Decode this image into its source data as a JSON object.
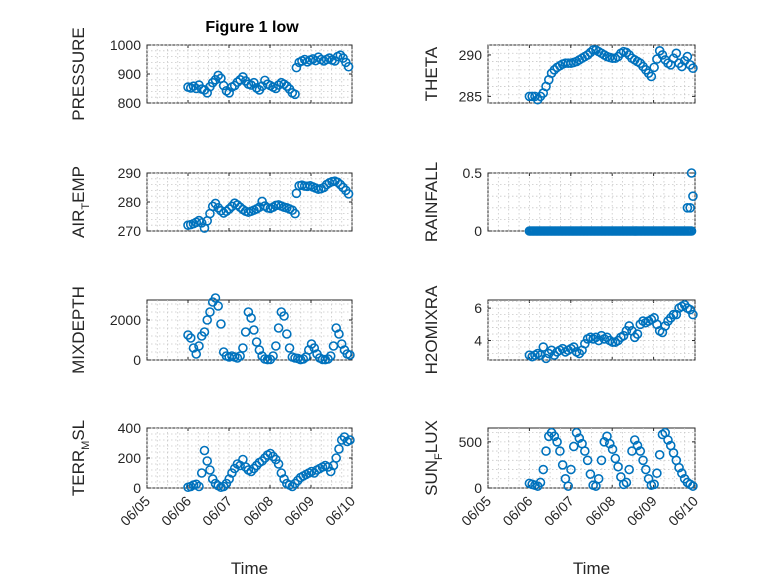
{
  "figure": {
    "title": "Figure 1 low",
    "marker_color": "#0072BD"
  },
  "chart_data": [
    {
      "type": "scatter",
      "ylabel": "PRESSURE",
      "ylabel_sub": "",
      "ylabel_rest": "",
      "ylim": [
        800,
        1000
      ],
      "yticks": [
        800,
        900,
        1000
      ],
      "xticks": [],
      "xlabel": "",
      "title": "Figure 1 low",
      "grid": true,
      "x": [
        6.85,
        6.95,
        7.05,
        7.15,
        7.25,
        7.35,
        7.45,
        7.55,
        7.65,
        7.75,
        7.85,
        7.95,
        8.05,
        8.15,
        8.25,
        8.35,
        8.45,
        8.55,
        8.65,
        8.75,
        8.85,
        8.95,
        9.05,
        9.15,
        9.25,
        9.35,
        9.45,
        9.55,
        9.65,
        9.75,
        9.85,
        9.95,
        10.05,
        10.15,
        10.25,
        10.35,
        10.45,
        10.55,
        10.65,
        10.75,
        10.8,
        10.9,
        11.0,
        11.1,
        11.2,
        11.3,
        11.4,
        11.5,
        11.6,
        11.7,
        11.8,
        11.9,
        12.0,
        12.1,
        12.2,
        12.3,
        12.4,
        12.5,
        12.6,
        12.7
      ],
      "y": [
        855,
        852,
        858,
        850,
        862,
        848,
        845,
        835,
        856,
        870,
        880,
        895,
        885,
        860,
        842,
        835,
        855,
        860,
        872,
        880,
        890,
        876,
        865,
        862,
        870,
        852,
        845,
        858,
        878,
        865,
        860,
        855,
        850,
        862,
        870,
        865,
        858,
        848,
        835,
        830,
        922,
        940,
        945,
        950,
        942,
        948,
        952,
        946,
        958,
        950,
        945,
        950,
        955,
        948,
        945,
        960,
        965,
        955,
        940,
        925
      ]
    },
    {
      "type": "scatter",
      "ylabel": "THETA",
      "ylabel_sub": "",
      "ylabel_rest": "",
      "ylim": [
        284.2,
        291.2
      ],
      "yticks": [
        285,
        290
      ],
      "xticks": [],
      "xlabel": "",
      "grid": true,
      "x": [
        6.85,
        6.95,
        7.05,
        7.15,
        7.25,
        7.35,
        7.45,
        7.55,
        7.65,
        7.75,
        7.85,
        7.95,
        8.05,
        8.15,
        8.25,
        8.35,
        8.45,
        8.55,
        8.65,
        8.75,
        8.85,
        8.95,
        9.05,
        9.15,
        9.25,
        9.35,
        9.45,
        9.55,
        9.65,
        9.75,
        9.85,
        9.95,
        10.05,
        10.15,
        10.25,
        10.35,
        10.45,
        10.55,
        10.65,
        10.75,
        10.85,
        10.95,
        11.05,
        11.15,
        11.25,
        11.35,
        11.45,
        11.55,
        11.65,
        11.75,
        11.85,
        11.95,
        12.05,
        12.15,
        12.25,
        12.35,
        12.45,
        12.55,
        12.65,
        12.75
      ],
      "y": [
        285.0,
        285.0,
        285.0,
        284.6,
        285.0,
        285.4,
        286.2,
        287.0,
        287.8,
        288.2,
        288.5,
        288.7,
        288.9,
        289.0,
        289.0,
        289.0,
        289.1,
        289.2,
        289.4,
        289.6,
        289.8,
        290.0,
        290.3,
        290.6,
        290.6,
        290.4,
        290.2,
        290.0,
        289.8,
        289.7,
        289.6,
        289.6,
        289.8,
        290.2,
        290.4,
        290.3,
        290.0,
        289.6,
        289.4,
        289.2,
        289.0,
        288.6,
        288.2,
        287.8,
        287.4,
        288.5,
        289.5,
        290.5,
        290.0,
        289.4,
        289.0,
        288.8,
        289.6,
        290.2,
        289.0,
        288.6,
        289.3,
        289.8,
        288.8,
        288.4
      ]
    },
    {
      "type": "scatter",
      "ylabel": "AIR",
      "ylabel_sub": "T",
      "ylabel_rest": "EMP",
      "ylim": [
        270,
        290
      ],
      "yticks": [
        270,
        280,
        290
      ],
      "xticks": [],
      "xlabel": "",
      "grid": true,
      "x": [
        6.85,
        6.95,
        7.05,
        7.15,
        7.25,
        7.35,
        7.45,
        7.55,
        7.65,
        7.75,
        7.85,
        7.95,
        8.05,
        8.15,
        8.25,
        8.35,
        8.45,
        8.55,
        8.65,
        8.75,
        8.85,
        8.95,
        9.05,
        9.15,
        9.25,
        9.35,
        9.45,
        9.55,
        9.65,
        9.75,
        9.85,
        9.95,
        10.05,
        10.15,
        10.25,
        10.35,
        10.45,
        10.55,
        10.65,
        10.75,
        10.8,
        10.9,
        11.0,
        11.1,
        11.2,
        11.3,
        11.4,
        11.5,
        11.6,
        11.7,
        11.8,
        11.9,
        12.0,
        12.1,
        12.2,
        12.3,
        12.4,
        12.5,
        12.6,
        12.7
      ],
      "y": [
        272.0,
        272.2,
        272.5,
        273.0,
        273.6,
        272.8,
        271.0,
        273.5,
        276.0,
        278.5,
        279.5,
        278.0,
        277.0,
        276.2,
        276.8,
        277.6,
        278.5,
        279.6,
        279.0,
        278.2,
        277.4,
        276.8,
        276.5,
        276.8,
        277.2,
        277.6,
        278.2,
        280.2,
        278.6,
        278.0,
        277.8,
        278.2,
        278.8,
        279.0,
        278.6,
        278.2,
        278.0,
        277.6,
        277.2,
        276.0,
        283.0,
        285.6,
        285.8,
        285.5,
        285.4,
        285.6,
        285.2,
        284.8,
        284.4,
        284.6,
        285.0,
        286.0,
        286.6,
        287.0,
        287.2,
        286.8,
        286.0,
        285.0,
        284.0,
        282.8
      ]
    },
    {
      "type": "scatter",
      "ylabel": "RAINFALL",
      "ylabel_sub": "",
      "ylabel_rest": "",
      "ylim": [
        0,
        0.5
      ],
      "yticks": [
        0,
        0.5
      ],
      "xticks": [],
      "xlabel": "",
      "grid": true,
      "x": [
        6.85,
        6.9,
        6.95,
        7.0,
        7.05,
        7.1,
        7.15,
        7.2,
        7.25,
        7.3,
        7.35,
        7.4,
        7.45,
        7.5,
        7.55,
        7.6,
        7.65,
        7.7,
        7.75,
        7.8,
        7.85,
        7.9,
        7.95,
        8.0,
        8.05,
        8.1,
        8.15,
        8.2,
        8.25,
        8.3,
        8.35,
        8.4,
        8.45,
        8.5,
        8.55,
        8.6,
        8.65,
        8.7,
        8.75,
        8.8,
        8.85,
        8.9,
        8.95,
        9.0,
        9.05,
        9.1,
        9.15,
        9.2,
        9.25,
        9.3,
        9.35,
        9.4,
        9.45,
        9.5,
        9.55,
        9.6,
        9.65,
        9.7,
        9.75,
        9.8,
        9.85,
        9.9,
        9.95,
        10.0,
        10.05,
        10.1,
        10.15,
        10.2,
        10.25,
        10.3,
        10.35,
        10.4,
        10.45,
        10.5,
        10.55,
        10.6,
        10.65,
        10.7,
        10.75,
        10.8,
        10.85,
        10.9,
        10.95,
        11.0,
        11.05,
        11.1,
        11.15,
        11.2,
        11.25,
        11.3,
        11.35,
        11.4,
        11.45,
        11.5,
        11.55,
        11.6,
        11.65,
        11.7,
        11.75,
        11.8,
        11.85,
        11.9,
        11.95,
        12.0,
        12.05,
        12.1,
        12.15,
        12.2,
        12.25,
        12.3,
        12.35,
        12.4,
        12.45,
        12.5,
        12.55,
        12.6,
        12.65,
        12.7,
        12.55,
        12.65,
        12.7,
        12.75
      ],
      "y": [
        0,
        0,
        0,
        0,
        0,
        0,
        0,
        0,
        0,
        0,
        0,
        0,
        0,
        0,
        0,
        0,
        0,
        0,
        0,
        0,
        0,
        0,
        0,
        0,
        0,
        0,
        0,
        0,
        0,
        0,
        0,
        0,
        0,
        0,
        0,
        0,
        0,
        0,
        0,
        0,
        0,
        0,
        0,
        0,
        0,
        0,
        0,
        0,
        0,
        0,
        0,
        0,
        0,
        0,
        0,
        0,
        0,
        0,
        0,
        0,
        0,
        0,
        0,
        0,
        0,
        0,
        0,
        0,
        0,
        0,
        0,
        0,
        0,
        0,
        0,
        0,
        0,
        0,
        0,
        0,
        0,
        0,
        0,
        0,
        0,
        0,
        0,
        0,
        0,
        0,
        0,
        0,
        0,
        0,
        0,
        0,
        0,
        0,
        0,
        0,
        0,
        0,
        0,
        0,
        0,
        0,
        0,
        0,
        0,
        0,
        0,
        0,
        0,
        0,
        0,
        0,
        0,
        0,
        0.2,
        0.2,
        0.5,
        0.3
      ]
    },
    {
      "type": "scatter",
      "ylabel": "MIXDEPTH",
      "ylabel_sub": "",
      "ylabel_rest": "",
      "ylim": [
        0,
        3000
      ],
      "yticks": [
        0,
        2000
      ],
      "xticks": [],
      "xlabel": "",
      "grid": true,
      "x": [
        6.85,
        6.95,
        7.05,
        7.15,
        7.25,
        7.35,
        7.45,
        7.55,
        7.65,
        7.75,
        7.85,
        7.95,
        8.05,
        8.15,
        8.25,
        8.35,
        8.45,
        8.55,
        8.65,
        8.75,
        8.85,
        8.95,
        9.05,
        9.15,
        9.25,
        9.35,
        9.45,
        9.55,
        9.65,
        9.75,
        9.85,
        9.95,
        10.05,
        10.15,
        10.25,
        10.35,
        10.45,
        10.55,
        10.65,
        10.75,
        10.85,
        10.95,
        11.05,
        11.15,
        11.25,
        11.35,
        11.45,
        11.55,
        11.65,
        11.75,
        11.85,
        11.95,
        12.05,
        12.15,
        12.25,
        12.35,
        12.45,
        12.55,
        12.65,
        12.75
      ],
      "y": [
        1250,
        1100,
        600,
        300,
        700,
        1200,
        1400,
        2000,
        2400,
        2900,
        3100,
        2700,
        1800,
        400,
        200,
        150,
        200,
        150,
        100,
        200,
        600,
        1400,
        2400,
        2100,
        1500,
        900,
        500,
        200,
        50,
        20,
        30,
        200,
        700,
        1600,
        2400,
        2200,
        1300,
        600,
        150,
        100,
        80,
        20,
        50,
        150,
        500,
        800,
        600,
        300,
        100,
        30,
        20,
        50,
        200,
        700,
        1600,
        1300,
        800,
        500,
        300,
        250
      ]
    },
    {
      "type": "scatter",
      "ylabel": "H2OMIXRA",
      "ylabel_sub": "",
      "ylabel_rest": "",
      "ylim": [
        2.8,
        6.5
      ],
      "yticks": [
        4,
        6
      ],
      "xticks": [],
      "xlabel": "",
      "grid": true,
      "x": [
        6.85,
        6.95,
        7.05,
        7.15,
        7.25,
        7.35,
        7.45,
        7.55,
        7.65,
        7.75,
        7.85,
        7.95,
        8.05,
        8.15,
        8.25,
        8.35,
        8.45,
        8.55,
        8.65,
        8.75,
        8.85,
        8.95,
        9.05,
        9.15,
        9.25,
        9.35,
        9.45,
        9.55,
        9.65,
        9.75,
        9.85,
        9.95,
        10.05,
        10.15,
        10.25,
        10.35,
        10.45,
        10.55,
        10.65,
        10.75,
        10.85,
        10.95,
        11.05,
        11.15,
        11.25,
        11.35,
        11.45,
        11.55,
        11.65,
        11.75,
        11.85,
        11.95,
        12.05,
        12.15,
        12.25,
        12.35,
        12.45,
        12.55,
        12.65,
        12.75
      ],
      "y": [
        3.1,
        3.0,
        3.1,
        3.2,
        3.1,
        3.6,
        2.9,
        3.2,
        3.4,
        3.1,
        3.3,
        3.4,
        3.5,
        3.3,
        3.4,
        3.5,
        3.6,
        3.3,
        3.2,
        3.4,
        3.8,
        4.1,
        4.2,
        4.1,
        4.2,
        4.0,
        4.3,
        4.1,
        4.2,
        4.0,
        3.9,
        3.9,
        4.0,
        4.2,
        4.3,
        4.6,
        4.9,
        4.6,
        4.2,
        4.4,
        5.0,
        5.2,
        5.1,
        5.2,
        5.3,
        5.4,
        5.0,
        4.6,
        4.5,
        4.9,
        5.2,
        5.4,
        5.6,
        5.6,
        6.0,
        6.1,
        6.2,
        6.0,
        5.9,
        5.6
      ]
    },
    {
      "type": "scatter",
      "ylabel": "TERR",
      "ylabel_sub": "M",
      "ylabel_rest": "SL",
      "ylim": [
        0,
        400
      ],
      "yticks": [
        0,
        200,
        400
      ],
      "xticks": [
        "06/05",
        "06/06",
        "06/07",
        "06/08",
        "06/09",
        "06/10"
      ],
      "xlabel": "Time",
      "grid": true,
      "x": [
        6.85,
        6.95,
        7.05,
        7.15,
        7.25,
        7.35,
        7.45,
        7.55,
        7.65,
        7.75,
        7.85,
        7.95,
        8.05,
        8.15,
        8.25,
        8.35,
        8.45,
        8.55,
        8.65,
        8.75,
        8.85,
        8.95,
        9.05,
        9.15,
        9.25,
        9.35,
        9.45,
        9.55,
        9.65,
        9.75,
        9.85,
        9.95,
        10.05,
        10.15,
        10.25,
        10.35,
        10.45,
        10.55,
        10.65,
        10.75,
        10.85,
        10.95,
        11.05,
        11.15,
        11.25,
        11.35,
        11.45,
        11.55,
        11.65,
        11.75,
        11.85,
        11.95,
        12.05,
        12.15,
        12.25,
        12.35,
        12.45,
        12.55,
        12.65,
        12.75
      ],
      "y": [
        5,
        10,
        20,
        25,
        10,
        100,
        250,
        180,
        120,
        60,
        30,
        15,
        5,
        10,
        30,
        60,
        100,
        130,
        160,
        150,
        190,
        140,
        120,
        110,
        130,
        150,
        170,
        180,
        200,
        220,
        230,
        210,
        190,
        160,
        100,
        60,
        30,
        20,
        10,
        30,
        50,
        70,
        80,
        90,
        100,
        110,
        100,
        120,
        130,
        140,
        150,
        140,
        110,
        150,
        200,
        260,
        320,
        340,
        310,
        320
      ]
    },
    {
      "type": "scatter",
      "ylabel": "SUN",
      "ylabel_sub": "F",
      "ylabel_rest": "LUX",
      "ylim": [
        0,
        650
      ],
      "yticks": [
        0,
        500
      ],
      "xticks": [
        "06/05",
        "06/06",
        "06/07",
        "06/08",
        "06/09",
        "06/10"
      ],
      "xlabel": "Time",
      "grid": true,
      "x": [
        6.85,
        6.95,
        7.05,
        7.15,
        7.25,
        7.35,
        7.45,
        7.55,
        7.65,
        7.75,
        7.85,
        7.95,
        8.05,
        8.15,
        8.25,
        8.35,
        8.45,
        8.55,
        8.65,
        8.75,
        8.85,
        8.95,
        9.05,
        9.15,
        9.25,
        9.35,
        9.45,
        9.55,
        9.65,
        9.75,
        9.85,
        9.95,
        10.05,
        10.15,
        10.25,
        10.35,
        10.45,
        10.55,
        10.65,
        10.75,
        10.85,
        10.95,
        11.05,
        11.15,
        11.25,
        11.35,
        11.45,
        11.55,
        11.65,
        11.75,
        11.85,
        11.95,
        12.05,
        12.15,
        12.25,
        12.35,
        12.45,
        12.55,
        12.65,
        12.75
      ],
      "y": [
        50,
        40,
        30,
        20,
        60,
        200,
        400,
        560,
        600,
        560,
        500,
        400,
        250,
        100,
        20,
        200,
        450,
        600,
        540,
        480,
        400,
        300,
        150,
        30,
        20,
        100,
        300,
        500,
        560,
        480,
        420,
        320,
        230,
        120,
        40,
        60,
        200,
        400,
        520,
        460,
        400,
        300,
        200,
        100,
        30,
        40,
        160,
        360,
        580,
        600,
        520,
        460,
        380,
        300,
        220,
        160,
        100,
        60,
        40,
        20
      ]
    }
  ]
}
